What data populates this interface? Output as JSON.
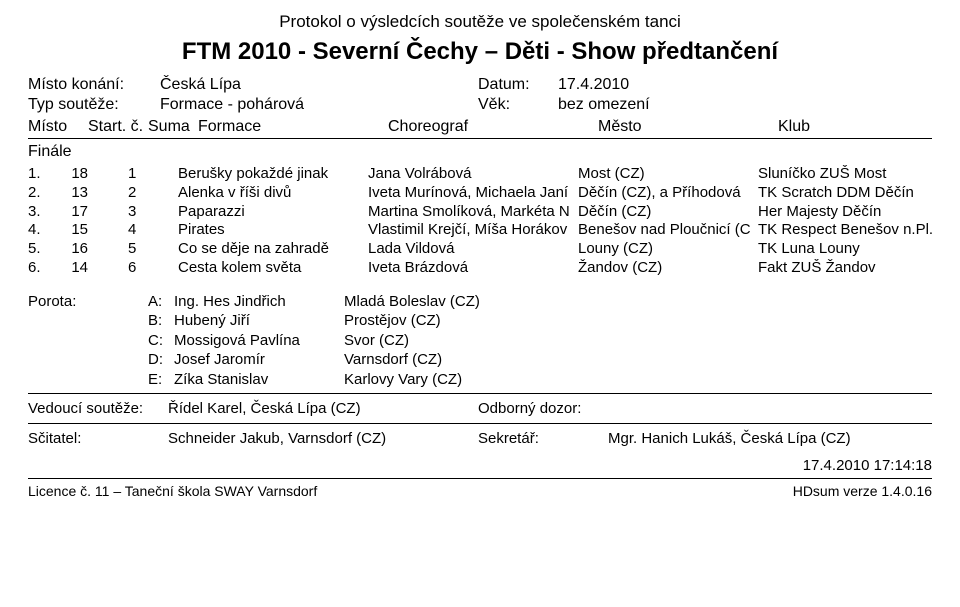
{
  "supertitle": "Protokol o výsledcích soutěže ve společenském tanci",
  "maintitle": "FTM 2010 - Severní Čechy – Děti - Show předtančení",
  "meta": {
    "venue_label": "Místo konání:",
    "venue": "Česká Lípa",
    "date_label": "Datum:",
    "date": "17.4.2010",
    "type_label": "Typ soutěže:",
    "type": "Formace - pohárová",
    "age_label": "Věk:",
    "age": "bez omezení"
  },
  "head": {
    "misto": "Místo",
    "startc": "Start. č.",
    "suma": "Suma",
    "formace": "Formace",
    "choreograf": "Choreograf",
    "mesto": "Město",
    "klub": "Klub"
  },
  "section": "Finále",
  "results": [
    {
      "idx": "1.",
      "num": "18",
      "suma": "1",
      "form": "Berušky pokaždé jinak",
      "chor": "Jana Volrábová",
      "mesto": "Most (CZ)",
      "klub": "Sluníčko ZUŠ Most"
    },
    {
      "idx": "2.",
      "num": "13",
      "suma": "2",
      "form": "Alenka v říši divů",
      "chor": "Iveta Murínová, Michaela Janí",
      "mesto": "Děčín (CZ), a Příhodová",
      "klub": "TK Scratch DDM Děčín"
    },
    {
      "idx": "3.",
      "num": "17",
      "suma": "3",
      "form": "Paparazzi",
      "chor": "Martina Smolíková, Markéta N",
      "mesto": "Děčín (CZ)",
      "klub": "Her Majesty Děčín"
    },
    {
      "idx": "4.",
      "num": "15",
      "suma": "4",
      "form": "Pirates",
      "chor": "Vlastimil Krejčí, Míša Horákov",
      "mesto": "Benešov nad Ploučnicí (C",
      "klub": "TK Respect Benešov n.Pl."
    },
    {
      "idx": "5.",
      "num": "16",
      "suma": "5",
      "form": "Co se děje na zahradě",
      "chor": "Lada Vildová",
      "mesto": "Louny (CZ)",
      "klub": "TK Luna Louny"
    },
    {
      "idx": "6.",
      "num": "14",
      "suma": "6",
      "form": "Cesta kolem světa",
      "chor": "Iveta Brázdová",
      "mesto": "Žandov (CZ)",
      "klub": "Fakt ZUŠ Žandov"
    }
  ],
  "judges_label": "Porota:",
  "judges": [
    {
      "code": "A:",
      "name": "Ing. Hes Jindřich",
      "city": "Mladá Boleslav (CZ)"
    },
    {
      "code": "B:",
      "name": "Hubený Jiří",
      "city": "Prostějov (CZ)"
    },
    {
      "code": "C:",
      "name": "Mossigová Pavlína",
      "city": "Svor (CZ)"
    },
    {
      "code": "D:",
      "name": "Josef Jaromír",
      "city": "Varnsdorf (CZ)"
    },
    {
      "code": "E:",
      "name": "Zíka Stanislav",
      "city": "Karlovy Vary (CZ)"
    }
  ],
  "officials": {
    "leader_label": "Vedoucí soutěže:",
    "leader": "Řídel Karel, Česká Lípa (CZ)",
    "supervisor_label": "Odborný dozor:",
    "supervisor": "",
    "scrutineer_label": "Sčitatel:",
    "scrutineer": "Schneider Jakub, Varnsdorf (CZ)",
    "secretary_label": "Sekretář:",
    "secretary": "Mgr. Hanich Lukáš, Česká Lípa (CZ)"
  },
  "timestamp": "17.4.2010 17:14:18",
  "footer": {
    "license": "Licence č. 11 – Taneční škola SWAY Varnsdorf",
    "version": "HDsum verze 1.4.0.16"
  }
}
